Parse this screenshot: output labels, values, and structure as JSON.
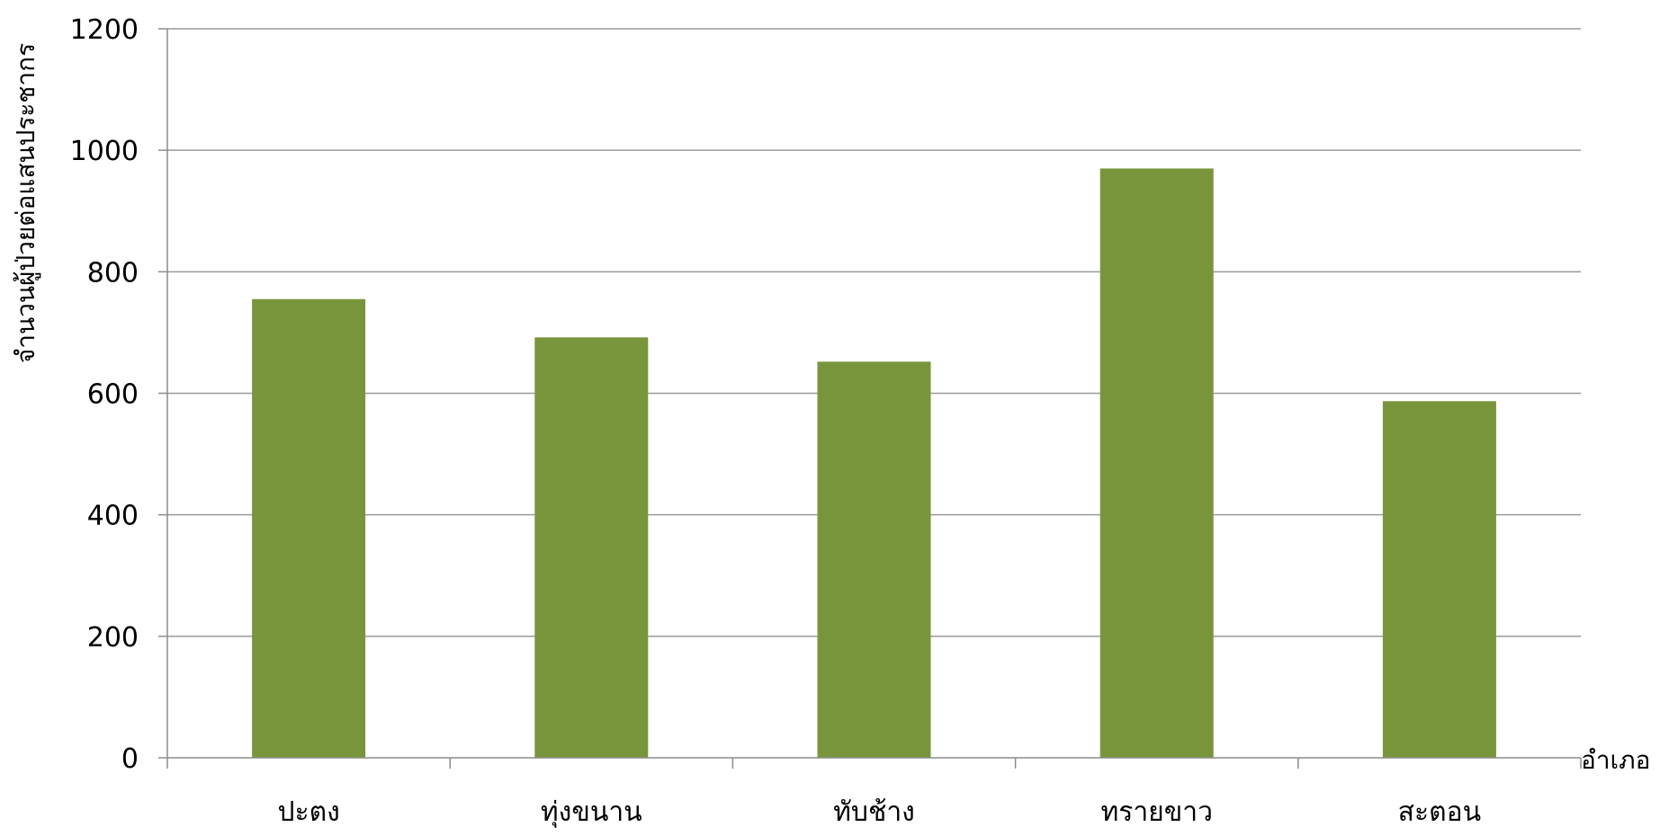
{
  "chart_data": {
    "type": "bar",
    "categories": [
      "ปะตง",
      "ทุ่งขนาน",
      "ทับช้าง",
      "ทรายขาว",
      "สะตอน"
    ],
    "values": [
      755,
      692,
      652,
      970,
      587
    ],
    "title": "",
    "xlabel": "อำเภอ",
    "ylabel": "จำนวนผู้ป่วยต่อแสนประชากร",
    "ylim": [
      0,
      1200
    ],
    "yticks": [
      0,
      200,
      400,
      600,
      800,
      1000,
      1200
    ],
    "grid": true,
    "legend": "none",
    "colors": {
      "bar": "#79953b",
      "grid": "#9a9a9a",
      "axis": "#8c8c8c"
    }
  }
}
